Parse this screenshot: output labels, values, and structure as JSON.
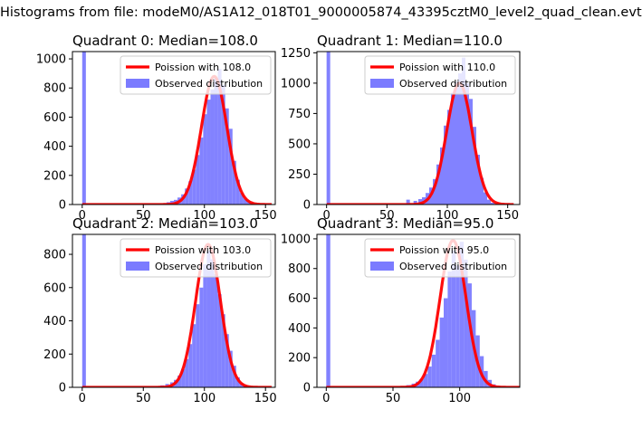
{
  "figure": {
    "suptitle": "Histograms from file: modeM0/AS1A12_018T01_9000005874_43395cztM0_level2_quad_clean.evt"
  },
  "colors": {
    "observed": "#7b7bff",
    "poisson": "#ff0000",
    "axes": "#000000"
  },
  "chart_data": [
    {
      "type": "bar",
      "title": "Quadrant 0: Median=108.0",
      "xlim": [
        -8,
        158
      ],
      "ylim": [
        0,
        1050
      ],
      "xticks": [
        0,
        50,
        100,
        150
      ],
      "yticks": [
        0,
        200,
        400,
        600,
        800,
        1000
      ],
      "legend_position": "top-right",
      "legend": [
        "Poission with 108.0",
        "Observed distribution"
      ],
      "poisson_mean": 108.0,
      "poisson_peak": 880,
      "observed_bins": [
        [
          0,
          1050
        ],
        [
          66,
          8
        ],
        [
          69,
          16
        ],
        [
          72,
          25
        ],
        [
          75,
          32
        ],
        [
          78,
          48
        ],
        [
          81,
          70
        ],
        [
          84,
          110
        ],
        [
          87,
          160
        ],
        [
          90,
          240
        ],
        [
          93,
          340
        ],
        [
          96,
          460
        ],
        [
          99,
          620
        ],
        [
          102,
          720
        ],
        [
          105,
          790
        ],
        [
          108,
          870
        ],
        [
          111,
          930
        ],
        [
          114,
          820
        ],
        [
          117,
          660
        ],
        [
          120,
          520
        ],
        [
          123,
          300
        ],
        [
          126,
          170
        ],
        [
          129,
          80
        ],
        [
          132,
          40
        ],
        [
          135,
          20
        ],
        [
          138,
          8
        ],
        [
          141,
          4
        ]
      ]
    },
    {
      "type": "bar",
      "title": "Quadrant 1: Median=110.0",
      "xlim": [
        -8,
        160
      ],
      "ylim": [
        0,
        1260
      ],
      "xticks": [
        0,
        50,
        100,
        150
      ],
      "yticks": [
        0,
        250,
        500,
        750,
        1000,
        1250
      ],
      "legend_position": "top-right",
      "legend": [
        "Poission with 110.0",
        "Observed distribution"
      ],
      "poisson_mean": 110.0,
      "poisson_peak": 1000,
      "observed_bins": [
        [
          0,
          1260
        ],
        [
          66,
          40
        ],
        [
          72,
          30
        ],
        [
          76,
          45
        ],
        [
          79,
          60
        ],
        [
          82,
          95
        ],
        [
          85,
          140
        ],
        [
          88,
          210
        ],
        [
          91,
          330
        ],
        [
          94,
          470
        ],
        [
          97,
          650
        ],
        [
          100,
          780
        ],
        [
          103,
          920
        ],
        [
          106,
          1010
        ],
        [
          109,
          1080
        ],
        [
          112,
          1210
        ],
        [
          115,
          1000
        ],
        [
          118,
          870
        ],
        [
          121,
          640
        ],
        [
          124,
          410
        ],
        [
          127,
          220
        ],
        [
          130,
          100
        ],
        [
          133,
          40
        ],
        [
          136,
          15
        ],
        [
          139,
          6
        ]
      ]
    },
    {
      "type": "bar",
      "title": "Quadrant 2: Median=103.0",
      "xlim": [
        -8,
        158
      ],
      "ylim": [
        0,
        920
      ],
      "xticks": [
        0,
        50,
        100,
        150
      ],
      "yticks": [
        0,
        200,
        400,
        600,
        800
      ],
      "legend_position": "top-right",
      "legend": [
        "Poission with 103.0",
        "Observed distribution"
      ],
      "poisson_mean": 103.0,
      "poisson_peak": 860,
      "observed_bins": [
        [
          0,
          920
        ],
        [
          60,
          6
        ],
        [
          64,
          12
        ],
        [
          68,
          20
        ],
        [
          72,
          30
        ],
        [
          75,
          45
        ],
        [
          78,
          70
        ],
        [
          81,
          110
        ],
        [
          84,
          170
        ],
        [
          87,
          260
        ],
        [
          90,
          380
        ],
        [
          93,
          500
        ],
        [
          96,
          600
        ],
        [
          99,
          740
        ],
        [
          102,
          820
        ],
        [
          105,
          770
        ],
        [
          108,
          680
        ],
        [
          111,
          560
        ],
        [
          114,
          440
        ],
        [
          117,
          320
        ],
        [
          120,
          220
        ],
        [
          123,
          130
        ],
        [
          126,
          60
        ],
        [
          129,
          25
        ],
        [
          132,
          10
        ],
        [
          135,
          4
        ]
      ]
    },
    {
      "type": "bar",
      "title": "Quadrant 3: Median=95.0",
      "xlim": [
        -7,
        145
      ],
      "ylim": [
        0,
        1030
      ],
      "xticks": [
        0,
        50,
        100
      ],
      "yticks": [
        0,
        200,
        400,
        600,
        800,
        1000
      ],
      "legend_position": "top-right",
      "legend": [
        "Poission with 95.0",
        "Observed distribution"
      ],
      "poisson_mean": 95.0,
      "poisson_peak": 990,
      "observed_bins": [
        [
          0,
          1030
        ],
        [
          56,
          8
        ],
        [
          60,
          15
        ],
        [
          64,
          25
        ],
        [
          67,
          38
        ],
        [
          70,
          55
        ],
        [
          73,
          90
        ],
        [
          76,
          140
        ],
        [
          79,
          220
        ],
        [
          82,
          320
        ],
        [
          85,
          470
        ],
        [
          88,
          600
        ],
        [
          91,
          780
        ],
        [
          94,
          920
        ],
        [
          97,
          820
        ],
        [
          100,
          980
        ],
        [
          103,
          860
        ],
        [
          106,
          700
        ],
        [
          109,
          520
        ],
        [
          112,
          350
        ],
        [
          115,
          210
        ],
        [
          118,
          110
        ],
        [
          121,
          50
        ],
        [
          124,
          20
        ],
        [
          127,
          8
        ]
      ]
    }
  ]
}
